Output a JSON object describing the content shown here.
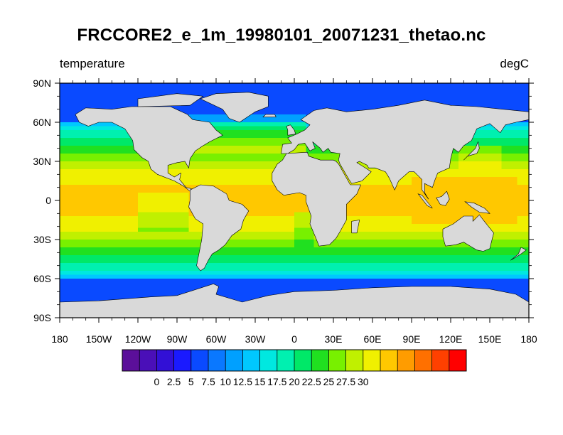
{
  "figure": {
    "title": "FRCCORE2_e_1m_19980101_20071231_thetao.nc",
    "left_title": "temperature",
    "right_title": "degC"
  },
  "map": {
    "projection": "cylindrical-equidistant",
    "lon_range": [
      -180,
      180
    ],
    "lat_range": [
      -90,
      90
    ],
    "land_color": "#d9d9d9",
    "ocean_field": "sea surface temperature",
    "lon_ticks": [
      {
        "value": -180,
        "label": "180"
      },
      {
        "value": -150,
        "label": "150W"
      },
      {
        "value": -120,
        "label": "120W"
      },
      {
        "value": -90,
        "label": "90W"
      },
      {
        "value": -60,
        "label": "60W"
      },
      {
        "value": -30,
        "label": "30W"
      },
      {
        "value": 0,
        "label": "0"
      },
      {
        "value": 30,
        "label": "30E"
      },
      {
        "value": 60,
        "label": "60E"
      },
      {
        "value": 90,
        "label": "90E"
      },
      {
        "value": 120,
        "label": "120E"
      },
      {
        "value": 150,
        "label": "150E"
      },
      {
        "value": 180,
        "label": "180"
      }
    ],
    "lat_ticks": [
      {
        "value": 90,
        "label": "90N"
      },
      {
        "value": 60,
        "label": "60N"
      },
      {
        "value": 30,
        "label": "30N"
      },
      {
        "value": 0,
        "label": "0"
      },
      {
        "value": -30,
        "label": "30S"
      },
      {
        "value": -60,
        "label": "60S"
      },
      {
        "value": -90,
        "label": "90S"
      }
    ]
  },
  "colorbar": {
    "levels": [
      -5,
      -2.5,
      0,
      2.5,
      5,
      7.5,
      10,
      12.5,
      15,
      17.5,
      20,
      22.5,
      25,
      27.5,
      30
    ],
    "labels": [
      "0",
      "2.5",
      "5",
      "7.5",
      "10",
      "12.5",
      "15",
      "17.5",
      "20",
      "22.5",
      "25",
      "27.5",
      "30"
    ],
    "colors": [
      "#5b0f9a",
      "#4a0fb8",
      "#3210d6",
      "#1a1aff",
      "#0a4aff",
      "#0a78ff",
      "#00a0ff",
      "#00c8ff",
      "#00e8e0",
      "#00f0b0",
      "#00e868",
      "#20e020",
      "#78f000",
      "#c0f000",
      "#f0f000",
      "#ffc800",
      "#ff9c00",
      "#ff7000",
      "#ff4000",
      "#ff0000"
    ]
  }
}
